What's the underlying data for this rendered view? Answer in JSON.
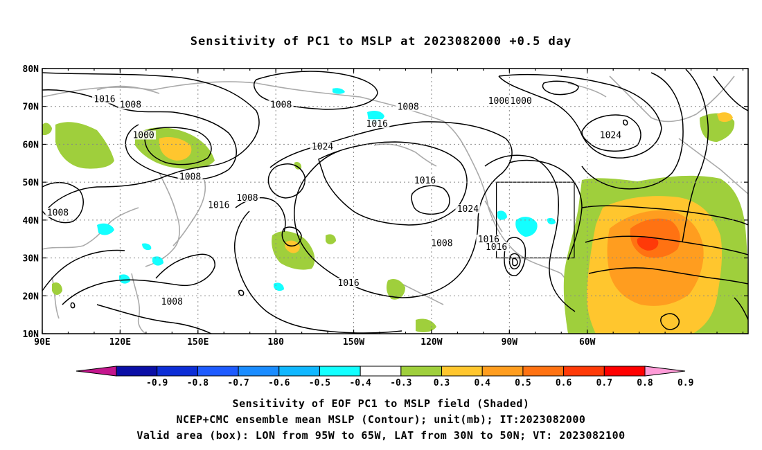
{
  "title": "Sensitivity of PC1 to MSLP at 2023082000 +0.5 day",
  "lat_labels": [
    "80N",
    "70N",
    "60N",
    "50N",
    "40N",
    "30N",
    "20N",
    "10N"
  ],
  "lon_labels": [
    "90E",
    "120E",
    "150E",
    "180",
    "150W",
    "120W",
    "90W",
    "60W"
  ],
  "contour_labels": [
    {
      "text": "1016",
      "lon": 114,
      "lat": 71.5
    },
    {
      "text": "1008",
      "lon": 124,
      "lat": 70
    },
    {
      "text": "1000",
      "lon": 129,
      "lat": 62
    },
    {
      "text": "1008",
      "lon": 182,
      "lat": 70
    },
    {
      "text": "1008",
      "lon": -129,
      "lat": 69.5
    },
    {
      "text": "1000",
      "lon": -94,
      "lat": 71
    },
    {
      "text": "1000",
      "lon": -85.5,
      "lat": 71
    },
    {
      "text": "1024",
      "lon": -51,
      "lat": 62
    },
    {
      "text": "1016",
      "lon": -141,
      "lat": 65
    },
    {
      "text": "1024",
      "lon": -162,
      "lat": 59
    },
    {
      "text": "1008",
      "lon": 147,
      "lat": 51
    },
    {
      "text": "1016",
      "lon": 158,
      "lat": 43.5
    },
    {
      "text": "1008",
      "lon": 96,
      "lat": 41.5
    },
    {
      "text": "1008",
      "lon": 169,
      "lat": 45.5
    },
    {
      "text": "1016",
      "lon": -122.5,
      "lat": 50
    },
    {
      "text": "1024",
      "lon": -106,
      "lat": 42.5
    },
    {
      "text": "1008",
      "lon": -116,
      "lat": 33.5
    },
    {
      "text": "1016",
      "lon": -98,
      "lat": 34.5
    },
    {
      "text": "1016",
      "lon": -95,
      "lat": 32.5
    },
    {
      "text": "1016",
      "lon": -152,
      "lat": 23
    },
    {
      "text": "1008",
      "lon": 140,
      "lat": 18
    }
  ],
  "colorbar": {
    "ticks": [
      "-0.9",
      "-0.8",
      "-0.7",
      "-0.6",
      "-0.5",
      "-0.4",
      "-0.3",
      "0.3",
      "0.4",
      "0.5",
      "0.6",
      "0.7",
      "0.8",
      "0.9"
    ],
    "colors": [
      "#0b0fa6",
      "#0d2ed6",
      "#1e5bff",
      "#1a8cff",
      "#11b7ff",
      "#13ffff",
      "#ffffff",
      "#9fcf3c",
      "#ffc62e",
      "#ff9d1f",
      "#ff7212",
      "#ff3a08",
      "#ff0000"
    ],
    "low_color": "#c4168d",
    "high_color": "#ff9cd8"
  },
  "valid_box": {
    "lon_min": -95,
    "lon_max": -65,
    "lat_min": 30,
    "lat_max": 50
  },
  "captions": [
    "Sensitivity of EOF PC1 to MSLP field (Shaded)",
    "NCEP+CMC ensemble mean MSLP (Contour); unit(mb); IT:2023082000",
    "Valid area (box): LON from 95W to 65W, LAT from 30N to 50N; VT: 2023082100"
  ]
}
